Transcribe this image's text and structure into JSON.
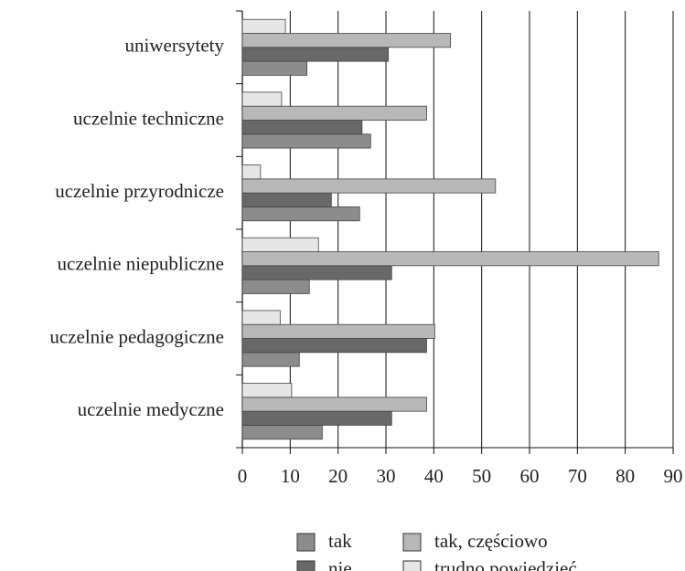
{
  "chart_data": {
    "type": "hbar",
    "categories": [
      "uniwersytety",
      "uczelnie techniczne",
      "uczelnie przyrodnicze",
      "uczelnie niepubliczne",
      "uczelnie pedagogiczne",
      "uczelnie medyczne"
    ],
    "series": [
      {
        "name": "tak",
        "color": "#8c8c8c",
        "values": [
          13.5,
          26.8,
          24.5,
          14,
          11.9,
          16.7
        ]
      },
      {
        "name": "nie",
        "color": "#686868",
        "values": [
          30.5,
          25,
          18.6,
          31.2,
          38.5,
          31.2
        ]
      },
      {
        "name": "tak, częściowo",
        "color": "#b8b8b8",
        "values": [
          43.5,
          38.5,
          52.9,
          87,
          40.2,
          38.5
        ]
      },
      {
        "name": "trudno powiedzieć",
        "color": "#e6e6e6",
        "values": [
          9,
          8.2,
          3.8,
          15.9,
          7.9,
          10.3
        ]
      }
    ],
    "xlim": [
      0,
      90
    ],
    "xticks": [
      0,
      10,
      20,
      30,
      40,
      50,
      60,
      70,
      80,
      90
    ],
    "grid": true
  }
}
